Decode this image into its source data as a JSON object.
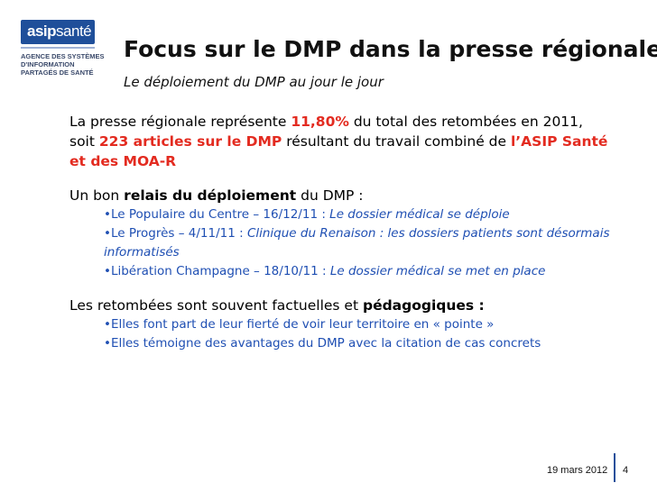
{
  "logo": {
    "brand_light": "asip",
    "brand_bold": "santé",
    "sub_lines": [
      "AGENCE DES SYSTÈMES",
      "D'INFORMATION",
      "PARTAGÉS DE SANTÉ"
    ]
  },
  "header": {
    "title": "Focus sur le DMP dans la presse régionale",
    "subtitle": "Le déploiement du DMP au jour le jour"
  },
  "para1": {
    "t1": "La presse régionale représente ",
    "h1": "11,80%",
    "t2": " du total des retombées en 2011, soit ",
    "h2": "223 articles sur le DMP",
    "t3": " résultant du travail combiné de ",
    "h3": "l’ASIP Santé et des MOA-R"
  },
  "para2": {
    "t1": "Un bon ",
    "b1": "relais du déploiement",
    "t2": " du DMP :",
    "bullets": [
      {
        "plain": "•Le Populaire du Centre – 16/12/11 : ",
        "ital": "Le dossier médical se déploie"
      },
      {
        "plain": "•Le Progrès – 4/11/11 : ",
        "ital": "Clinique du Renaison : les dossiers patients sont désormais informatisés"
      },
      {
        "plain": "•Libération Champagne – 18/10/11 : ",
        "ital": "Le dossier médical se met en place"
      }
    ]
  },
  "para3": {
    "t1": "Les retombées sont souvent factuelles et ",
    "b1": "pédagogiques :",
    "bullets": [
      "•Elles font part de leur fierté de voir leur territoire en « pointe »",
      "•Elles témoigne des avantages du DMP avec la citation de cas concrets"
    ]
  },
  "footer": {
    "date": "19 mars 2012",
    "page": "4"
  },
  "colors": {
    "highlight": "#e32b20",
    "bullet_text": "#1f4fb3",
    "brand": "#1f4f9a"
  }
}
